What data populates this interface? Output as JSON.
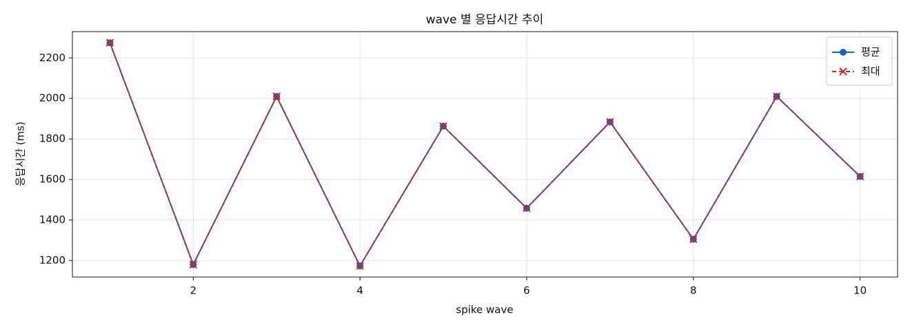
{
  "chart_data": {
    "type": "line",
    "title": "wave 별 응답시간 추이",
    "x_label": "spike wave",
    "y_label": "응답시간 (ms)",
    "x": [
      1,
      2,
      3,
      4,
      5,
      6,
      7,
      8,
      9,
      10
    ],
    "series": [
      {
        "name": "평균",
        "color": "#1565c0",
        "marker": "o",
        "linestyle": "solid",
        "values": [
          2275,
          1180,
          2010,
          1173,
          1863,
          1458,
          1884,
          1305,
          2010,
          1615
        ]
      },
      {
        "name": "최대",
        "color": "#c62828",
        "marker": "x",
        "linestyle": "dashed",
        "values": [
          2275,
          1180,
          2010,
          1173,
          1863,
          1458,
          1884,
          1305,
          2010,
          1615
        ]
      }
    ],
    "xlim": [
      0.55,
      10.45
    ],
    "xticks": [
      2,
      4,
      6,
      8,
      10
    ],
    "ylim": [
      1118,
      2330
    ],
    "yticks": [
      1200,
      1400,
      1600,
      1800,
      2000,
      2200
    ],
    "grid": true,
    "legend": "upper right"
  }
}
